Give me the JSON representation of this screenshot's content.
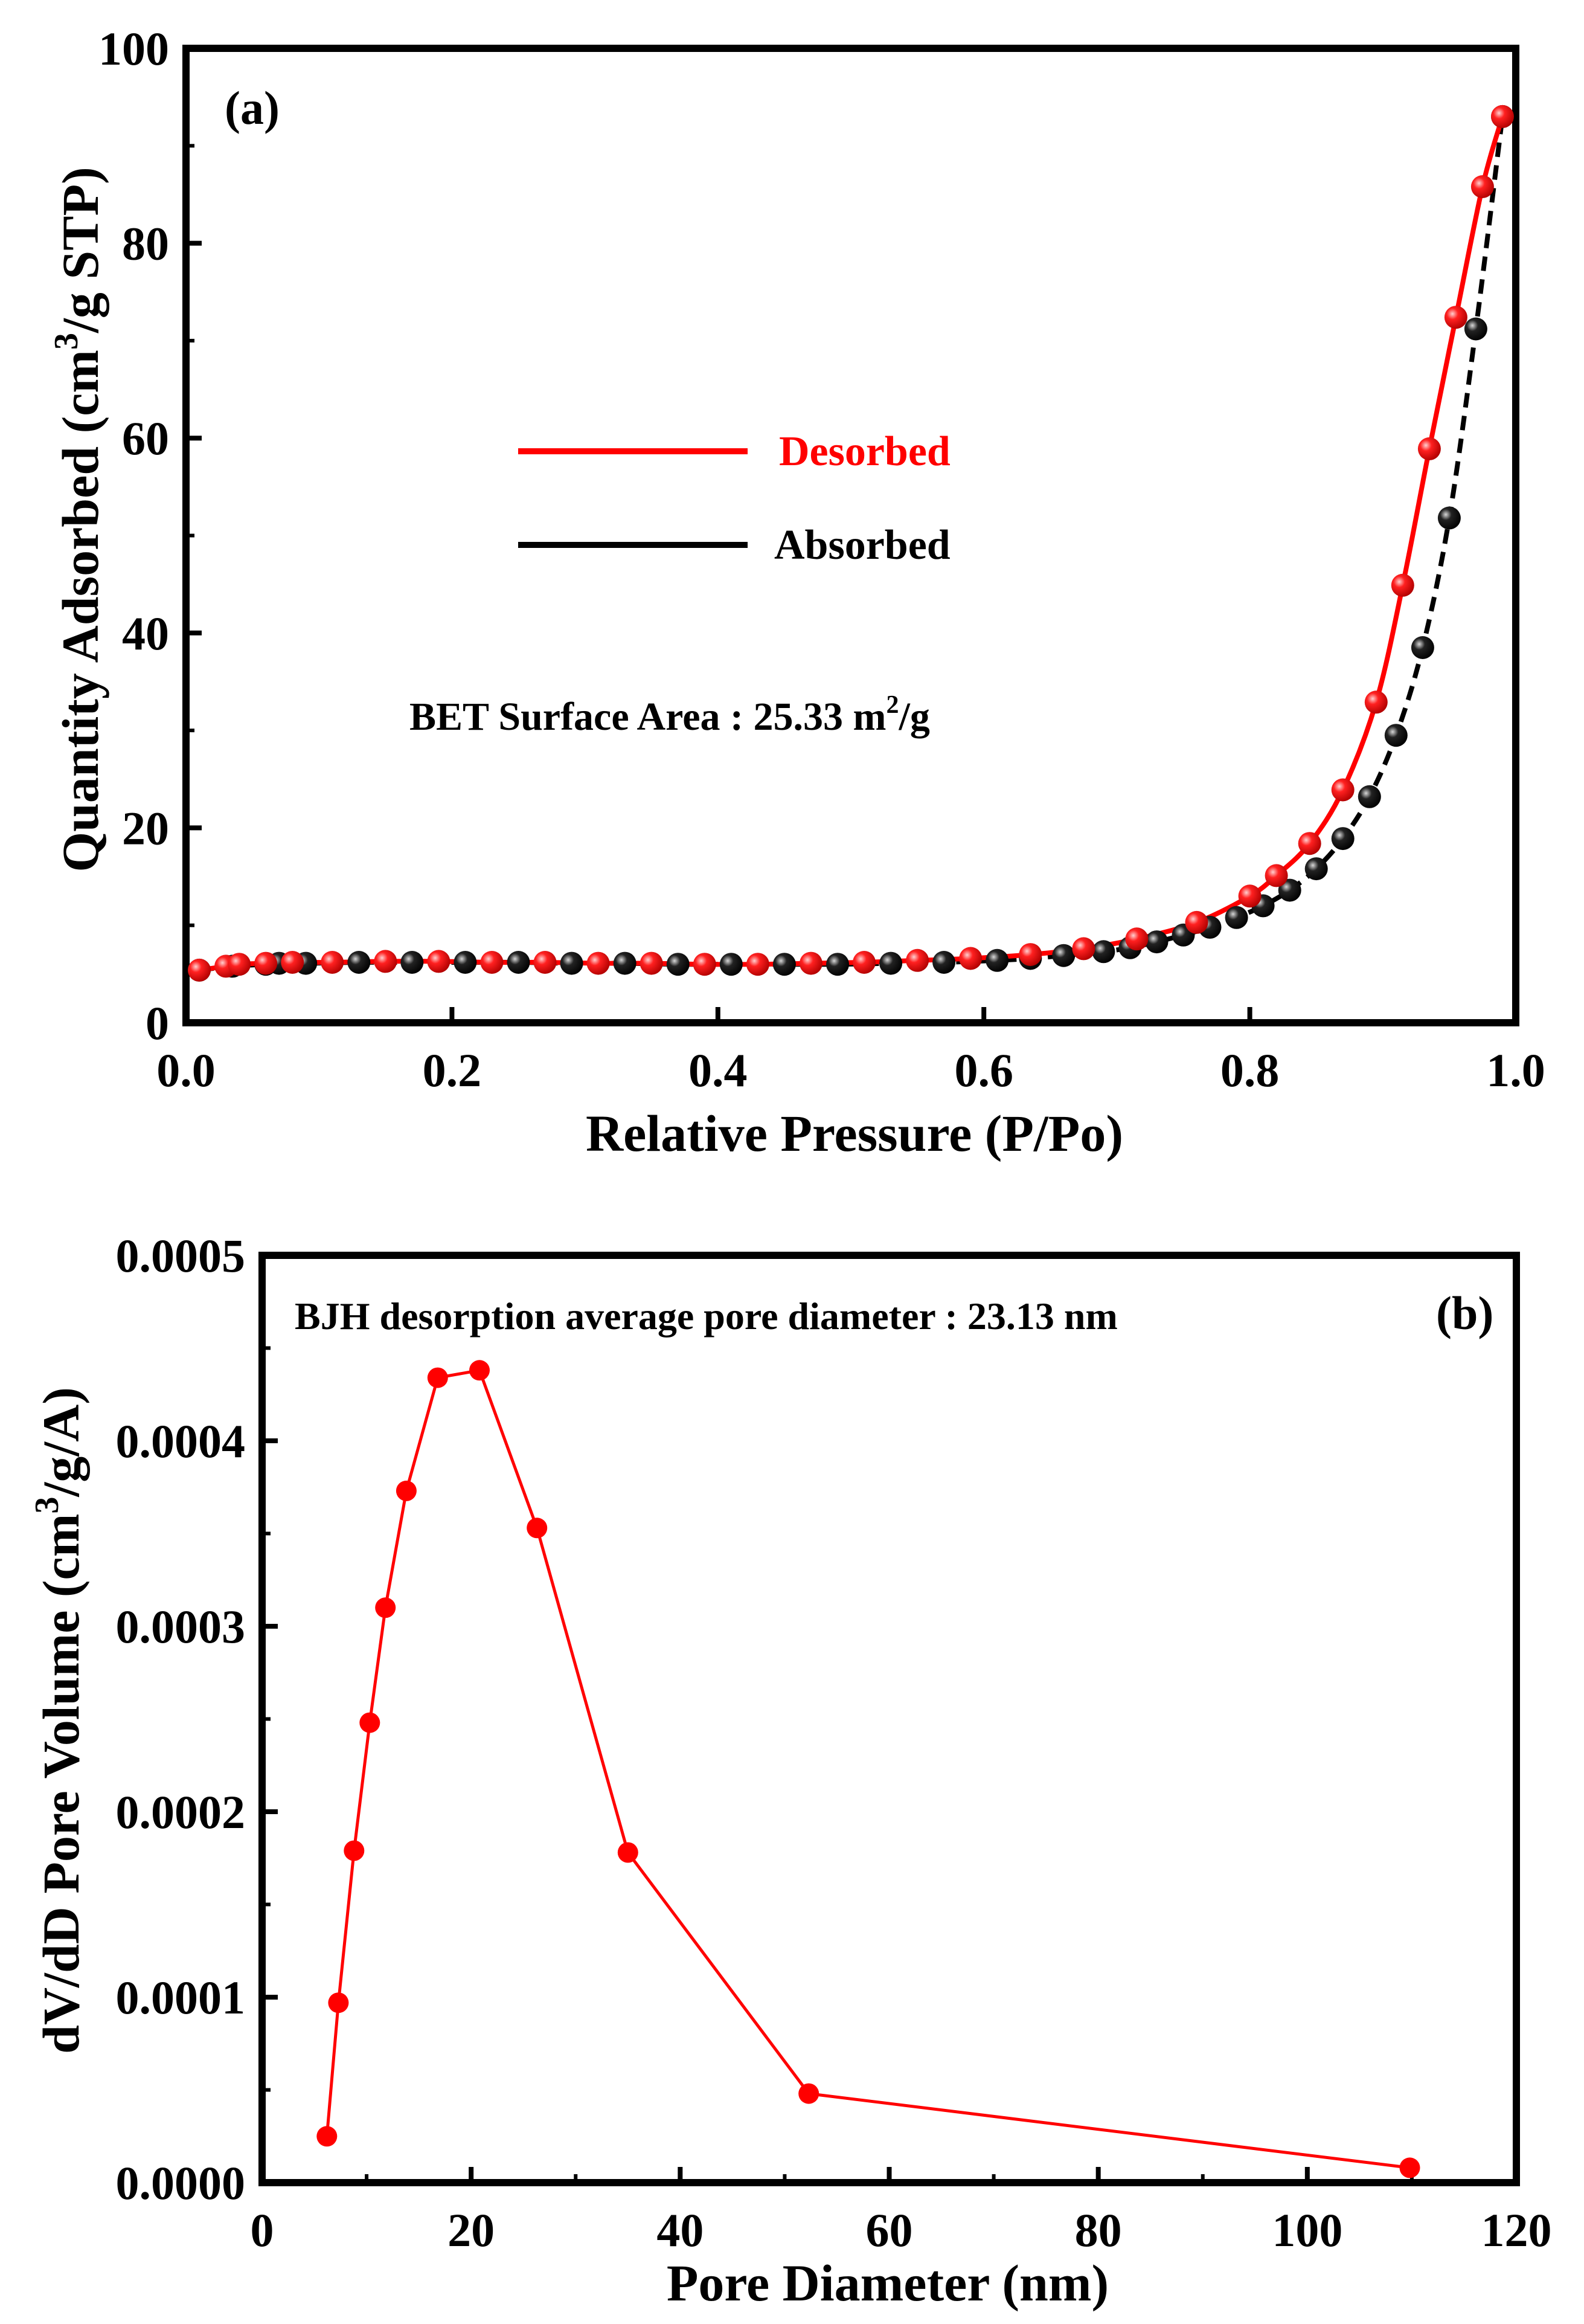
{
  "colors": {
    "desorbed": "#ff0000",
    "absorbed": "#000000",
    "axis": "#000000"
  },
  "chart_data": [
    {
      "type": "scatter",
      "panel_label": "(a)",
      "xlabel": "Relative Pressure (P/Po)",
      "ylabel": "Quantity Adsorbed (cm3/g STP)",
      "ylabel_parts": {
        "pre": "Quantity Adsorbed (cm",
        "sup": "3",
        "post": "/g STP)"
      },
      "xlim": [
        0.0,
        1.0
      ],
      "ylim": [
        0,
        100
      ],
      "xticks": [
        0.0,
        0.2,
        0.4,
        0.6,
        0.8,
        1.0
      ],
      "xtick_labels": [
        "0.0",
        "0.2",
        "0.4",
        "0.6",
        "0.8",
        "1.0"
      ],
      "yticks": [
        0,
        20,
        40,
        60,
        80,
        100
      ],
      "ytick_labels": [
        "0",
        "20",
        "40",
        "60",
        "80",
        "100"
      ],
      "legend": [
        {
          "name": "Desorbed",
          "color": "#ff0000"
        },
        {
          "name": "Absorbed",
          "color": "#000000"
        }
      ],
      "annotation": {
        "pre": "BET Surface Area : 25.33 m",
        "sup": "2",
        "post": "/g"
      },
      "series": [
        {
          "name": "Absorbed",
          "color": "#000000",
          "x": [
            0.01,
            0.035,
            0.06,
            0.07,
            0.09,
            0.13,
            0.17,
            0.21,
            0.25,
            0.29,
            0.33,
            0.37,
            0.41,
            0.45,
            0.49,
            0.53,
            0.57,
            0.61,
            0.635,
            0.66,
            0.69,
            0.71,
            0.73,
            0.75,
            0.77,
            0.79,
            0.81,
            0.83,
            0.85,
            0.87,
            0.89,
            0.91,
            0.93,
            0.95,
            0.97,
            0.99
          ],
          "y": [
            5.4,
            5.8,
            6.0,
            6.1,
            6.1,
            6.2,
            6.2,
            6.2,
            6.2,
            6.1,
            6.1,
            6.0,
            6.0,
            6.0,
            6.0,
            6.1,
            6.2,
            6.4,
            6.6,
            6.9,
            7.3,
            7.7,
            8.3,
            9.0,
            9.8,
            10.8,
            12.0,
            13.6,
            15.8,
            18.9,
            23.2,
            29.5,
            38.5,
            51.8,
            71.2,
            93.0
          ]
        },
        {
          "name": "Desorbed",
          "color": "#ff0000",
          "x": [
            0.01,
            0.03,
            0.04,
            0.06,
            0.08,
            0.11,
            0.15,
            0.19,
            0.23,
            0.27,
            0.31,
            0.35,
            0.39,
            0.43,
            0.47,
            0.51,
            0.55,
            0.59,
            0.635,
            0.675,
            0.715,
            0.76,
            0.8,
            0.82,
            0.845,
            0.87,
            0.895,
            0.915,
            0.935,
            0.955,
            0.975,
            0.99
          ],
          "y": [
            5.4,
            5.8,
            6.0,
            6.1,
            6.2,
            6.2,
            6.3,
            6.3,
            6.2,
            6.2,
            6.1,
            6.1,
            6.0,
            6.0,
            6.1,
            6.2,
            6.4,
            6.6,
            7.0,
            7.6,
            8.6,
            10.3,
            13.0,
            15.1,
            18.4,
            23.9,
            32.9,
            44.9,
            58.9,
            72.4,
            85.8,
            93.0
          ]
        }
      ]
    },
    {
      "type": "line",
      "panel_label": "(b)",
      "xlabel": "Pore Diameter (nm)",
      "ylabel": "dV/dD Pore Volume (cm3/g/A)",
      "ylabel_parts": {
        "pre": "dV/dD Pore Volume (cm",
        "sup": "3",
        "post": "/g/A)"
      },
      "xlim": [
        0,
        120
      ],
      "ylim": [
        0,
        0.0005
      ],
      "xticks": [
        0,
        20,
        40,
        60,
        80,
        100,
        120
      ],
      "xtick_labels": [
        "0",
        "20",
        "40",
        "60",
        "80",
        "100",
        "120"
      ],
      "yticks": [
        0,
        0.0001,
        0.0002,
        0.0003,
        0.0004,
        0.0005
      ],
      "ytick_labels": [
        "0.0000",
        "0.0001",
        "0.0002",
        "0.0003",
        "0.0004",
        "0.0005"
      ],
      "annotation": "BJH desorption average pore diameter : 23.13 nm",
      "series": [
        {
          "name": "",
          "color": "#ff0000",
          "x": [
            6.2,
            7.3,
            8.8,
            10.3,
            11.8,
            13.8,
            16.8,
            20.8,
            26.3,
            35.0,
            52.3,
            109.8
          ],
          "y": [
            2.5e-05,
            9.7e-05,
            0.000179,
            0.000248,
            0.00031,
            0.000373,
            0.000434,
            0.000438,
            0.000353,
            0.000178,
            4.8e-05,
            8e-06
          ]
        }
      ]
    }
  ]
}
